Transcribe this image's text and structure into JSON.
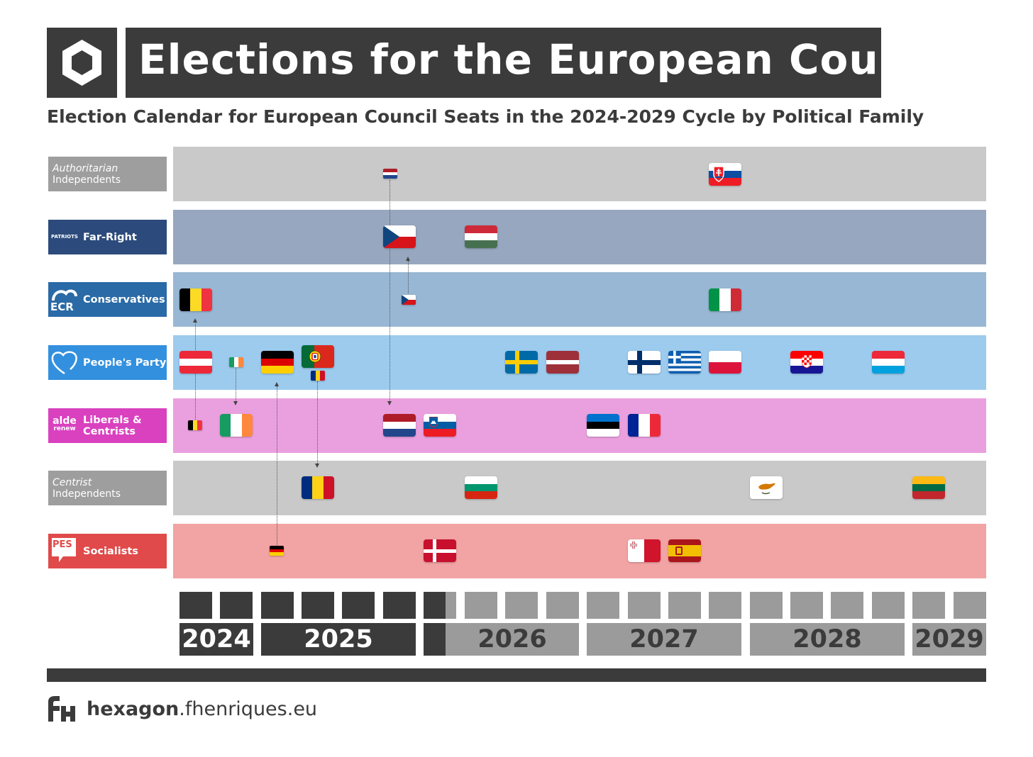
{
  "title": "Elections for the European Council",
  "subtitle": "Election Calendar for European Council Seats in the 2024-2029 Cycle by Political Family",
  "rows": [
    {
      "label1": "Authoritarian",
      "label2": "Independents",
      "color": "#c9c9c9",
      "label_color": "#9e9e9e"
    },
    {
      "label": "Far-Right",
      "badge": "PATRIOTS",
      "color": "#97a7bf",
      "label_color": "#2c4b7c"
    },
    {
      "label": "Conservatives",
      "badge": "ECR",
      "color": "#98b7d4",
      "label_color": "#2a6aa6"
    },
    {
      "label": "People's Party",
      "color": "#9ccbee",
      "label_color": "#3390de"
    },
    {
      "label": "Liberals & Centrists",
      "label_a": "Liberals &",
      "label_b": "Centrists",
      "badge1": "alde",
      "badge2": "renew",
      "color": "#eaa0de",
      "label_color": "#d941bf"
    },
    {
      "label1": "Centrist",
      "label2": "Independents",
      "color": "#c9c9c9",
      "label_color": "#9e9e9e"
    },
    {
      "label": "Socialists",
      "badge": "PES",
      "color": "#f2a3a3",
      "label_color": "#e04a4a"
    }
  ],
  "flags": [
    {
      "country": "Slovakia",
      "row": 0
    },
    {
      "country": "Netherlands",
      "row": 0,
      "small": true
    },
    {
      "country": "Czechia",
      "row": 1
    },
    {
      "country": "Hungary",
      "row": 1
    },
    {
      "country": "Belgium",
      "row": 2
    },
    {
      "country": "Czechia",
      "row": 2,
      "small": true
    },
    {
      "country": "Italy",
      "row": 2
    },
    {
      "country": "Austria",
      "row": 3
    },
    {
      "country": "Ireland",
      "row": 3,
      "small": true
    },
    {
      "country": "Germany",
      "row": 3
    },
    {
      "country": "Portugal",
      "row": 3
    },
    {
      "country": "Romania",
      "row": 3,
      "small": true
    },
    {
      "country": "Sweden",
      "row": 3
    },
    {
      "country": "Latvia",
      "row": 3
    },
    {
      "country": "Finland",
      "row": 3
    },
    {
      "country": "Greece",
      "row": 3
    },
    {
      "country": "Poland",
      "row": 3
    },
    {
      "country": "Croatia",
      "row": 3
    },
    {
      "country": "Luxembourg",
      "row": 3
    },
    {
      "country": "Belgium",
      "row": 4,
      "small": true
    },
    {
      "country": "Ireland",
      "row": 4
    },
    {
      "country": "Netherlands",
      "row": 4
    },
    {
      "country": "Slovenia",
      "row": 4
    },
    {
      "country": "Estonia",
      "row": 4
    },
    {
      "country": "France",
      "row": 4
    },
    {
      "country": "Romania",
      "row": 5
    },
    {
      "country": "Bulgaria",
      "row": 5
    },
    {
      "country": "Cyprus",
      "row": 5
    },
    {
      "country": "Lithuania",
      "row": 5
    },
    {
      "country": "Germany",
      "row": 6,
      "small": true
    },
    {
      "country": "Denmark",
      "row": 6
    },
    {
      "country": "Malta",
      "row": 6
    },
    {
      "country": "Spain",
      "row": 6
    }
  ],
  "timeline": {
    "years": [
      "2024",
      "2025",
      "2026",
      "2027",
      "2028",
      "2029"
    ],
    "past_color": "#3b3b3b",
    "future_color": "#9b9b9b"
  },
  "footer": {
    "brand": "hexagon",
    "domain": ".fhenriques.eu",
    "logo": "FH"
  },
  "icons": {
    "logo": "hexagon-icon",
    "footer_logo": "fh-logo-icon"
  }
}
